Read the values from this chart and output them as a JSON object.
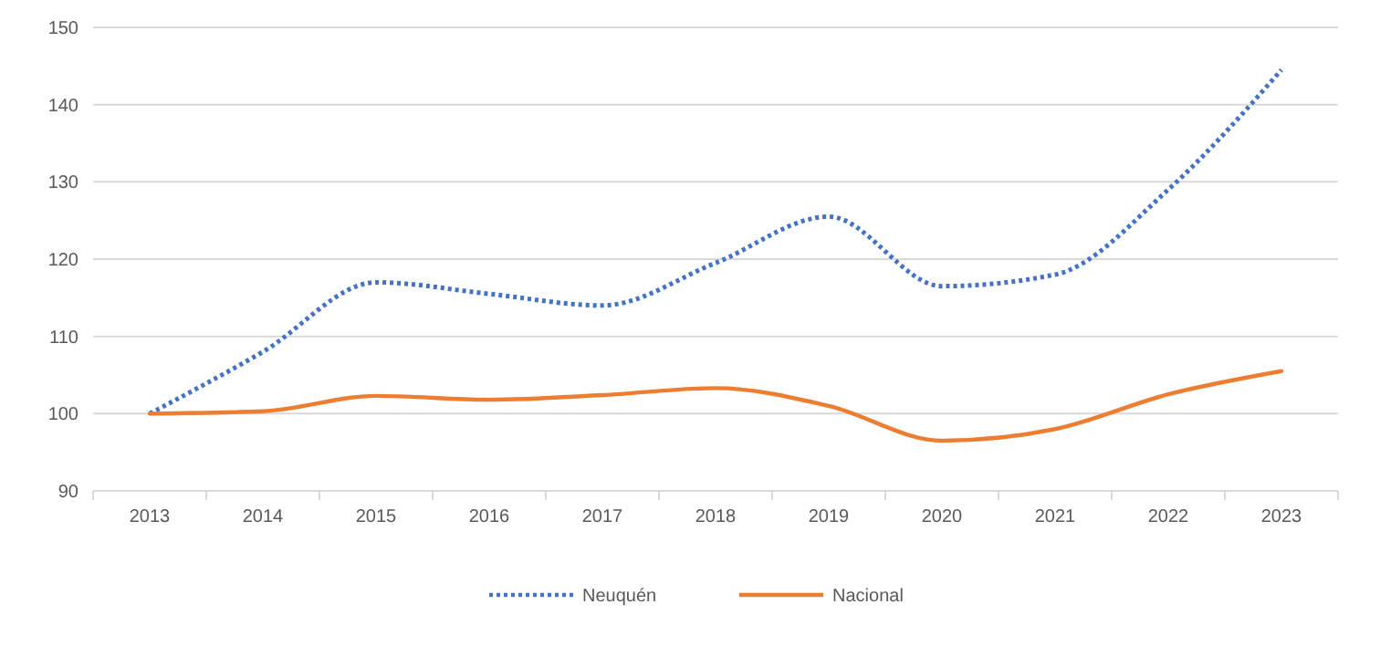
{
  "chart_data": {
    "type": "line",
    "categories": [
      "2013",
      "2014",
      "2015",
      "2016",
      "2017",
      "2018",
      "2019",
      "2020",
      "2021",
      "2022",
      "2023"
    ],
    "series": [
      {
        "name": "Neuquén",
        "color": "#4472c4",
        "line_style": "dotted",
        "values": [
          100,
          108,
          117,
          115.5,
          114,
          119.5,
          125.5,
          116.5,
          118,
          129,
          144.5
        ]
      },
      {
        "name": "Nacional",
        "color": "#ed7d31",
        "line_style": "solid",
        "values": [
          100,
          100.3,
          102.3,
          101.8,
          102.4,
          103.3,
          101,
          96.5,
          98,
          102.5,
          105.5
        ]
      }
    ],
    "ylim": [
      90,
      150
    ],
    "yticks": [
      90,
      100,
      110,
      120,
      130,
      140,
      150
    ],
    "grid": "y",
    "legend": "bottom",
    "marker": "none"
  }
}
